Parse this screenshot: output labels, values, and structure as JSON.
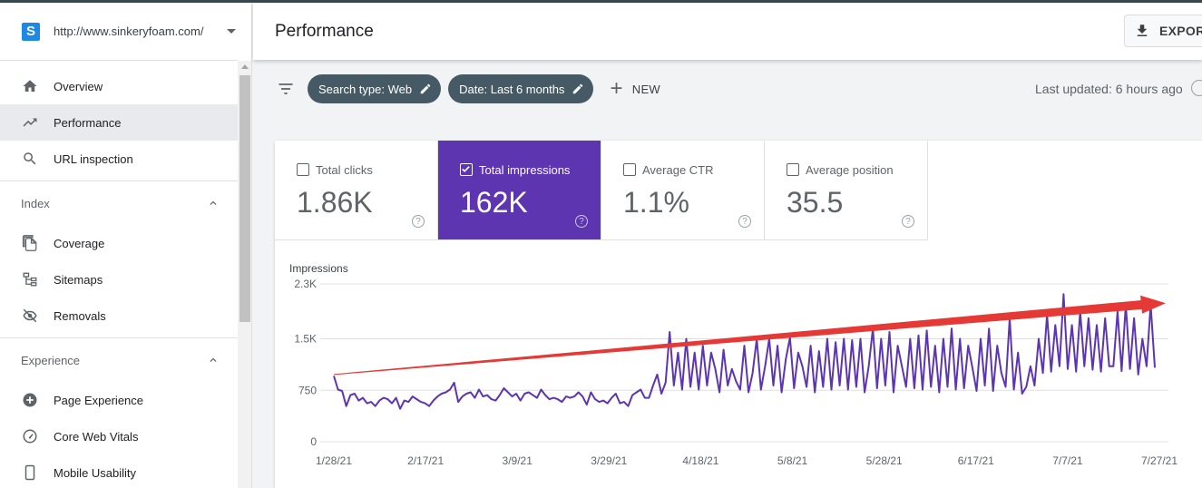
{
  "sidebar": {
    "property_logo": "S",
    "property_url": "http://www.sinkeryfoam.com/",
    "main_items": [
      {
        "label": "Overview",
        "icon": "home-icon"
      },
      {
        "label": "Performance",
        "icon": "trending-up-icon",
        "active": true
      },
      {
        "label": "URL inspection",
        "icon": "search-icon"
      }
    ],
    "index_section": "Index",
    "index_items": [
      {
        "label": "Coverage",
        "icon": "file-copy-icon"
      },
      {
        "label": "Sitemaps",
        "icon": "sitemap-icon"
      },
      {
        "label": "Removals",
        "icon": "eye-off-icon"
      }
    ],
    "experience_section": "Experience",
    "experience_items": [
      {
        "label": "Page Experience",
        "icon": "plus-circle-icon"
      },
      {
        "label": "Core Web Vitals",
        "icon": "gauge-icon"
      },
      {
        "label": "Mobile Usability",
        "icon": "phone-icon"
      }
    ]
  },
  "header": {
    "title": "Performance",
    "export_label": "EXPORT"
  },
  "filters": {
    "chips": [
      "Search type: Web",
      "Date: Last 6 months"
    ],
    "new_label": "NEW",
    "last_updated": "Last updated: 6 hours ago"
  },
  "metrics": [
    {
      "label": "Total clicks",
      "value": "1.86K",
      "selected": false
    },
    {
      "label": "Total impressions",
      "value": "162K",
      "selected": true
    },
    {
      "label": "Average CTR",
      "value": "1.1%",
      "selected": false
    },
    {
      "label": "Average position",
      "value": "35.5",
      "selected": false
    }
  ],
  "colors": {
    "accent": "#5e35b1",
    "chip": "#455a64",
    "trend_arrow": "#e53935",
    "line": "#5e35b1"
  },
  "chart_data": {
    "type": "line",
    "ylabel": "Impressions",
    "y_tick_labels": [
      "2.3K",
      "1.5K",
      "750",
      "0"
    ],
    "y_ticks": [
      2300,
      1500,
      750,
      0
    ],
    "ylim": [
      0,
      2300
    ],
    "x_tick_labels": [
      "1/28/21",
      "2/17/21",
      "3/9/21",
      "3/29/21",
      "4/18/21",
      "5/8/21",
      "5/28/21",
      "6/17/21",
      "7/7/21",
      "7/27/21"
    ],
    "x_start": "1/28/21",
    "x_end": "7/27/21",
    "grid": true,
    "series": [
      {
        "values": [
          960,
          760,
          740,
          520,
          680,
          700,
          600,
          640,
          560,
          580,
          520,
          600,
          640,
          620,
          560,
          640,
          480,
          600,
          580,
          660,
          620,
          580,
          560,
          520,
          600,
          660,
          700,
          720,
          760,
          860,
          580,
          660,
          700,
          720,
          640,
          760,
          660,
          680,
          620,
          600,
          680,
          780,
          720,
          660,
          700,
          600,
          700,
          720,
          680,
          640,
          760,
          680,
          620,
          640,
          620,
          580,
          660,
          640,
          660,
          720,
          660,
          540,
          720,
          620,
          580,
          600,
          560,
          640,
          700,
          560,
          580,
          520,
          680,
          720,
          760,
          640,
          640,
          820,
          980,
          700,
          860,
          1600,
          820,
          1300,
          760,
          1500,
          800,
          1300,
          760,
          1400,
          820,
          1300,
          1060,
          720,
          1340,
          820,
          1060,
          880,
          760,
          1400,
          720,
          1000,
          1500,
          760,
          1100,
          1500,
          820,
          1400,
          720,
          1200,
          1520,
          780,
          1300,
          1100,
          800,
          1400,
          720,
          1320,
          800,
          1500,
          760,
          1450,
          820,
          1500,
          760,
          1480,
          800,
          1500,
          720,
          1100,
          1650,
          780,
          1500,
          820,
          1600,
          720,
          1400,
          1100,
          800,
          1500,
          780,
          1550,
          760,
          1620,
          800,
          1400,
          720,
          1500,
          800,
          1650,
          760,
          1500,
          780,
          1400,
          1080,
          740,
          1500,
          820,
          1650,
          740,
          1400,
          1000,
          800,
          1800,
          760,
          1300,
          700,
          800,
          1100,
          820,
          1500,
          1000,
          1850,
          1020,
          1700,
          1100,
          2150,
          1060,
          1700,
          1020,
          1900,
          1100,
          1800,
          1050,
          1700,
          1020,
          1800,
          1100,
          1100,
          1900,
          1030,
          2000,
          1060,
          1800,
          980,
          1500,
          1100,
          2000,
          1080
        ]
      }
    ],
    "annotation": "upward trend arrow"
  }
}
